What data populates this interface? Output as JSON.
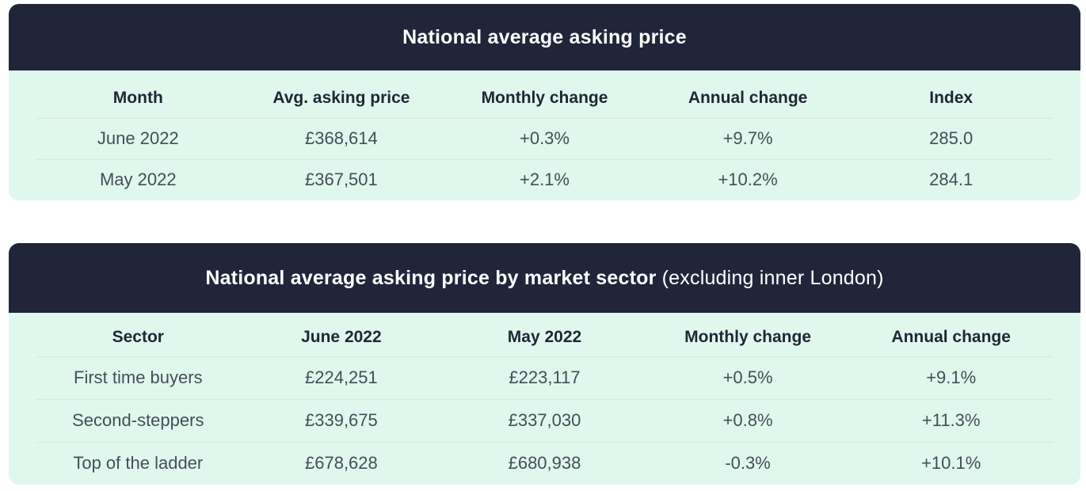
{
  "colors": {
    "title_bar_bg": "#212539",
    "table_bg": "#e0f7ed",
    "title_text": "#ffffff",
    "column_header_text": "#1f2637",
    "cell_text": "#454e58",
    "divider": "#d8e6e0"
  },
  "tables": [
    {
      "title": "National average asking price",
      "title_suffix": "",
      "columns": [
        "Month",
        "Avg. asking price",
        "Monthly change",
        "Annual change",
        "Index"
      ],
      "rows": [
        [
          "June 2022",
          "£368,614",
          "+0.3%",
          "+9.7%",
          "285.0"
        ],
        [
          "May 2022",
          "£367,501",
          "+2.1%",
          "+10.2%",
          "284.1"
        ]
      ]
    },
    {
      "title": "National average asking price by market sector",
      "title_suffix": " (excluding inner London)",
      "columns": [
        "Sector",
        "June 2022",
        "May 2022",
        "Monthly change",
        "Annual change"
      ],
      "rows": [
        [
          "First time buyers",
          "£224,251",
          "£223,117",
          "+0.5%",
          "+9.1%"
        ],
        [
          "Second-steppers",
          "£339,675",
          "£337,030",
          "+0.8%",
          "+11.3%"
        ],
        [
          "Top of the ladder",
          "£678,628",
          "£680,938",
          "-0.3%",
          "+10.1%"
        ]
      ]
    }
  ]
}
